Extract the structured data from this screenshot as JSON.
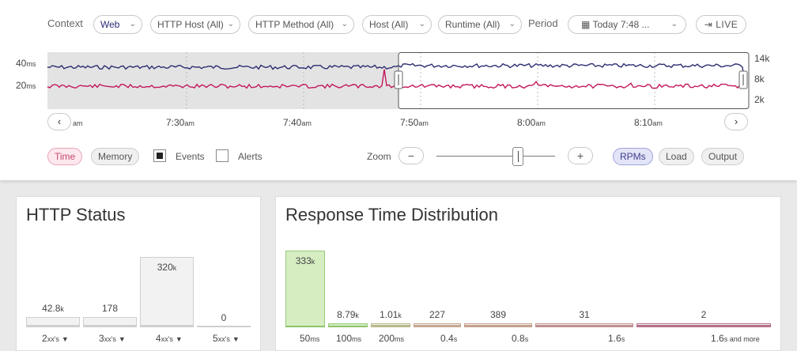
{
  "filters": {
    "context_label": "Context",
    "context_value": "Web",
    "http_host": "HTTP Host (All)",
    "http_method": "HTTP Method (All)",
    "host": "Host (All)",
    "runtime": "Runtime (All)",
    "period_label": "Period",
    "period_value": "Today 7:48 ...",
    "live_label": "LIVE"
  },
  "timeline": {
    "left_axis": [
      {
        "num": "40",
        "unit": "ms"
      },
      {
        "num": "20",
        "unit": "ms"
      }
    ],
    "right_axis": [
      "14k",
      "8k",
      "2k"
    ],
    "time_ticks": [
      {
        "num": "",
        "unit": "am"
      },
      {
        "num": "7:30",
        "unit": "am"
      },
      {
        "num": "7:40",
        "unit": "am"
      },
      {
        "num": "7:50",
        "unit": "am"
      },
      {
        "num": "8:00",
        "unit": "am"
      },
      {
        "num": "8:10",
        "unit": "am"
      }
    ],
    "prev_label": "‹",
    "next_label": "›",
    "colors": {
      "response_time": "#2d2d72",
      "throughput": "#c2185b",
      "outside_window": "#e3e3e3",
      "window_border": "#555555"
    }
  },
  "controls": {
    "time": "Time",
    "memory": "Memory",
    "events": "Events",
    "events_checked": true,
    "alerts": "Alerts",
    "alerts_checked": false,
    "zoom": "Zoom",
    "zoom_out": "−",
    "zoom_in": "+",
    "rpms": "RPMs",
    "load": "Load",
    "output": "Output"
  },
  "http_status": {
    "title": "HTTP Status",
    "chart_data": {
      "type": "bar",
      "categories": [
        {
          "num": "2",
          "unit": "xx's"
        },
        {
          "num": "3",
          "unit": "xx's"
        },
        {
          "num": "4",
          "unit": "xx's"
        },
        {
          "num": "5",
          "unit": "xx's"
        }
      ],
      "labels": [
        {
          "num": "42.8",
          "unit": "k"
        },
        {
          "num": "178",
          "unit": ""
        },
        {
          "num": "320",
          "unit": "k"
        },
        {
          "num": "0",
          "unit": ""
        }
      ],
      "values": [
        42800,
        178,
        320000,
        0
      ],
      "colors": [
        "#cfcfcf",
        "#cfcfcf",
        "#cfcfcf",
        "#cfcfcf"
      ]
    }
  },
  "response_time": {
    "title": "Response Time Distribution",
    "chart_data": {
      "type": "bar",
      "categories": [
        {
          "num": "50",
          "unit": "ms"
        },
        {
          "num": "100",
          "unit": "ms"
        },
        {
          "num": "200",
          "unit": "ms"
        },
        {
          "num": "0.4",
          "unit": "s"
        },
        {
          "num": "0.8",
          "unit": "s"
        },
        {
          "num": "1.6",
          "unit": "s"
        },
        {
          "num": "1.6",
          "unit": "s and more"
        }
      ],
      "labels": [
        {
          "num": "333",
          "unit": "k"
        },
        {
          "num": "8.79",
          "unit": "k"
        },
        {
          "num": "1.01",
          "unit": "k"
        },
        {
          "num": "227",
          "unit": ""
        },
        {
          "num": "389",
          "unit": ""
        },
        {
          "num": "31",
          "unit": ""
        },
        {
          "num": "2",
          "unit": ""
        }
      ],
      "values": [
        333000,
        8790,
        1010,
        227,
        389,
        31,
        2
      ],
      "colors": [
        "#8fc46a",
        "#8fc46a",
        "#b9b98a",
        "#c6a88f",
        "#c6a08c",
        "#c09090",
        "#b6708a"
      ]
    }
  }
}
